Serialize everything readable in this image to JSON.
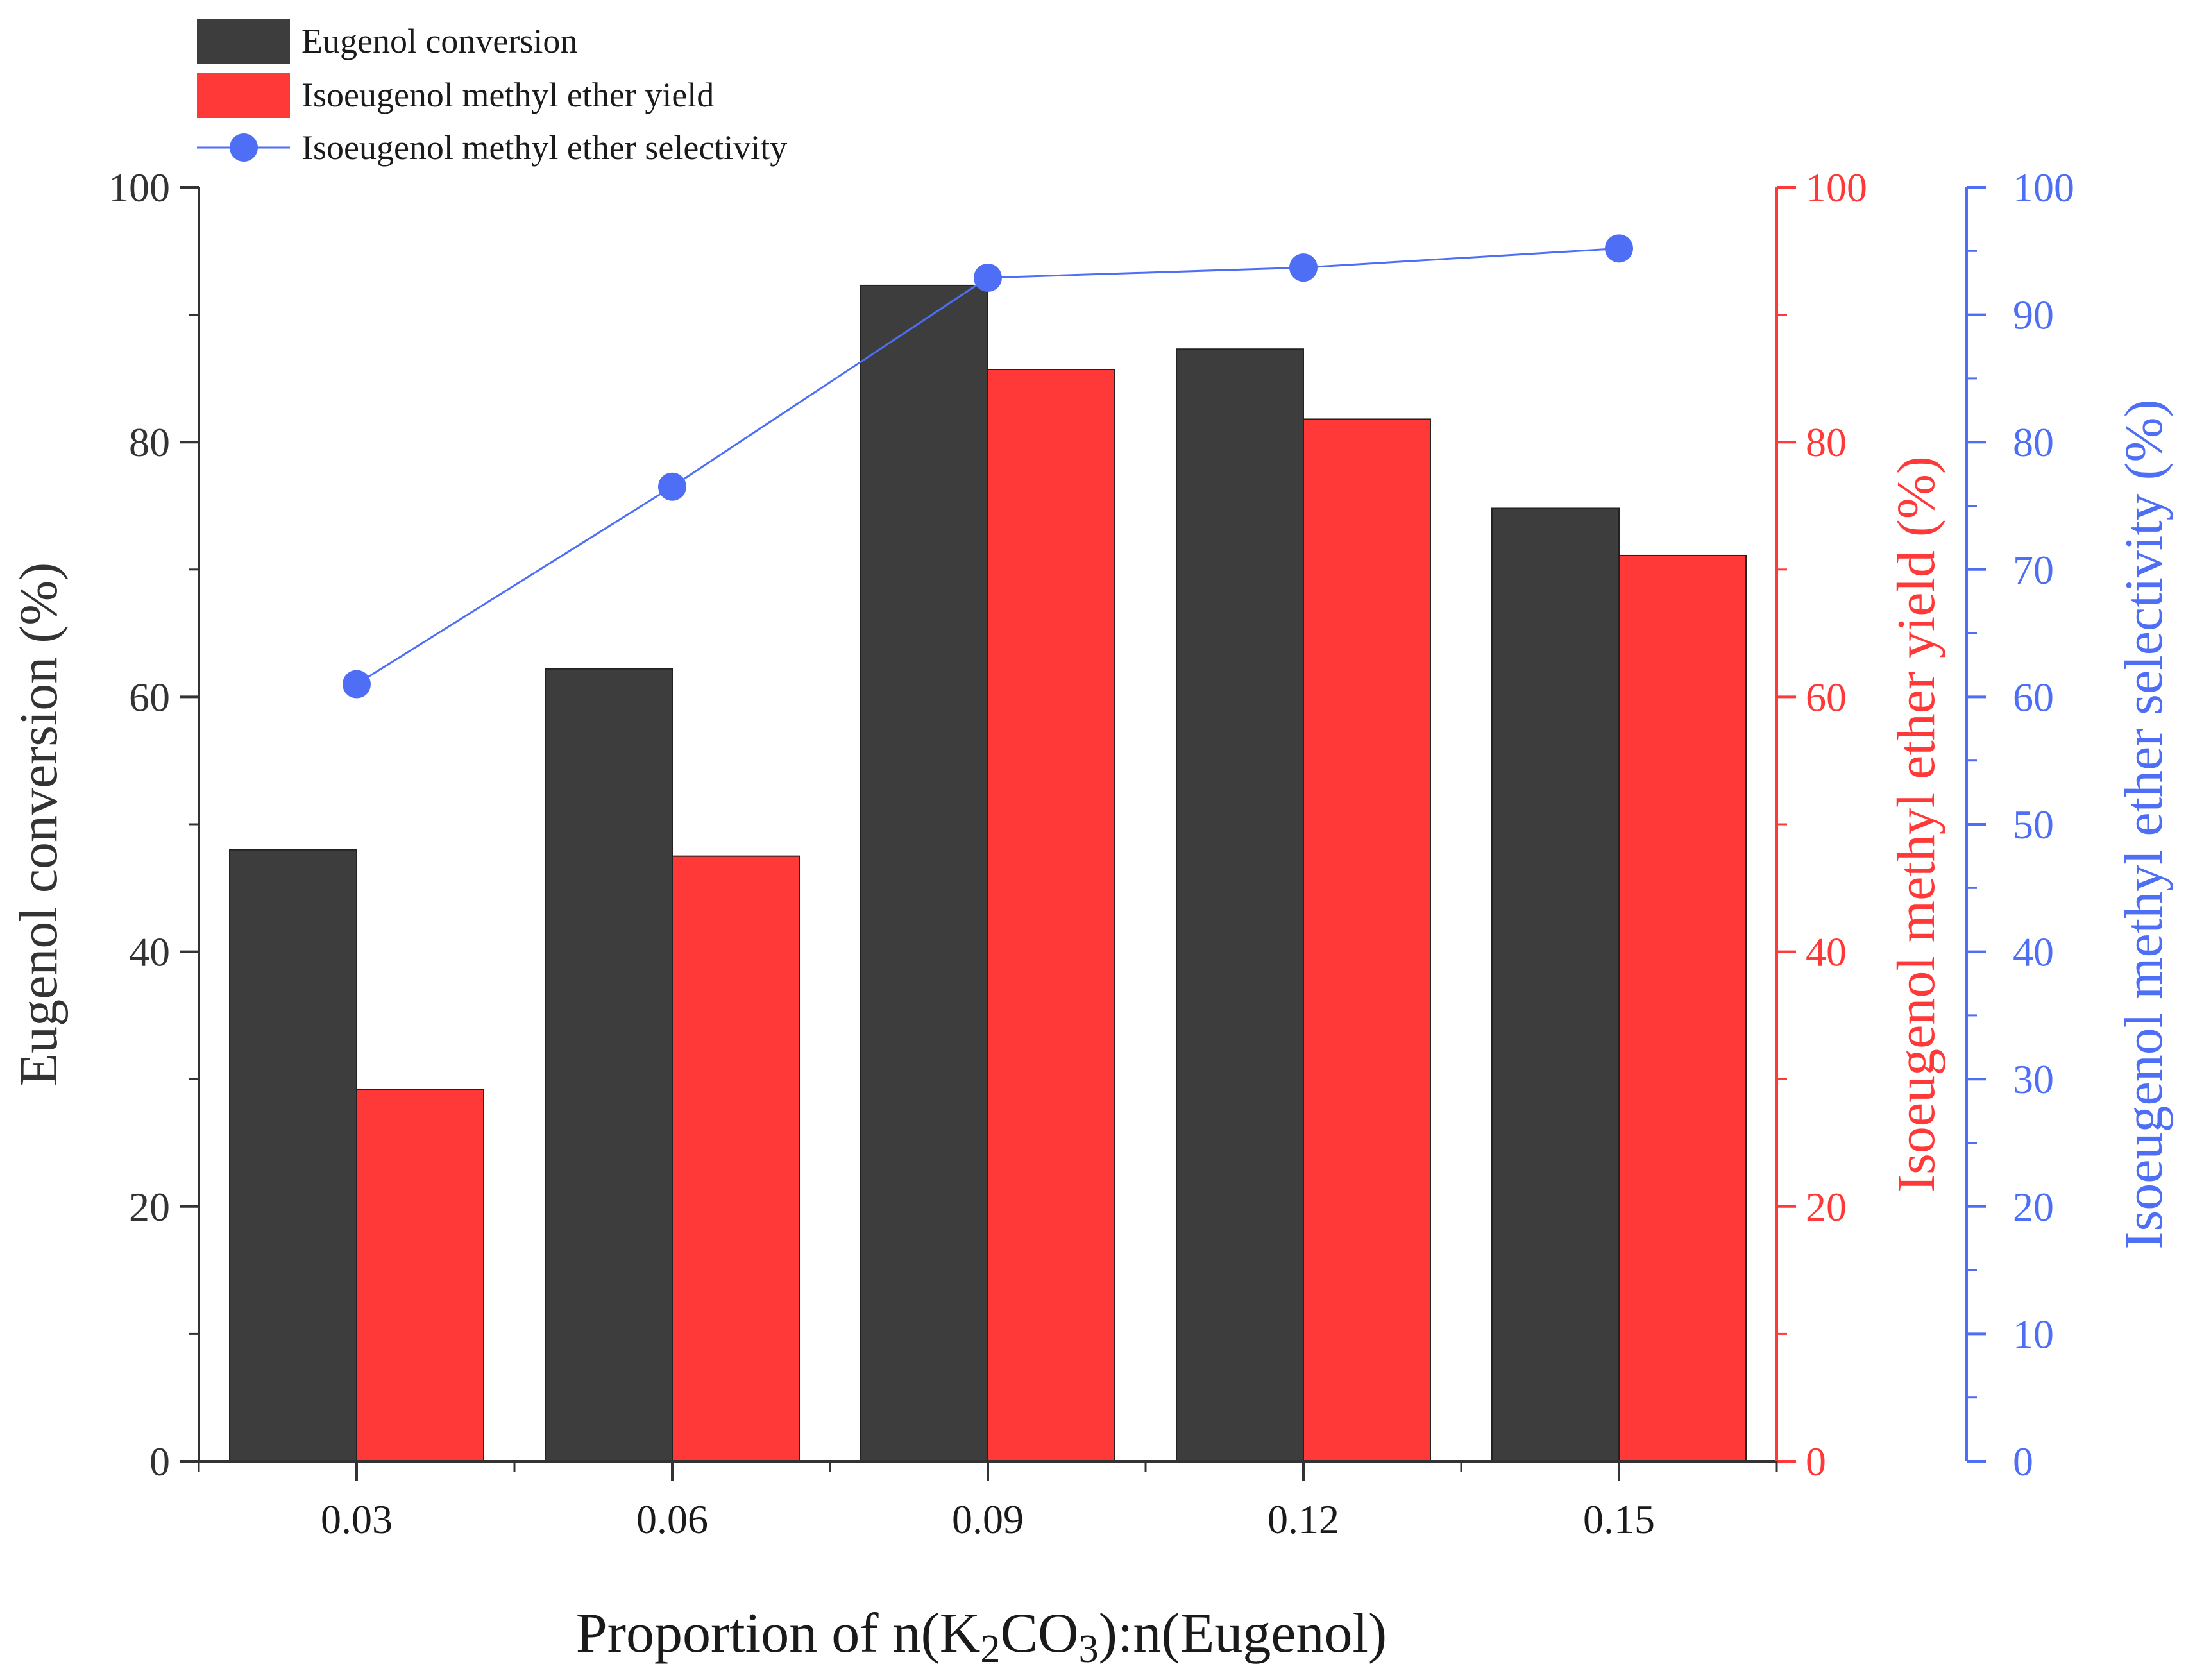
{
  "chart_data": {
    "type": "bar",
    "categories": [
      "0.03",
      "0.06",
      "0.09",
      "0.12",
      "0.15"
    ],
    "xlabel": {
      "prefix": "Proportion of n(K",
      "sub1": "2",
      "mid": "CO",
      "sub2": "3",
      "suffix": "):n(Eugenol)"
    },
    "series": [
      {
        "name": "Eugenol conversion",
        "type": "bar",
        "axis": "left",
        "color": "#3d3d3d",
        "values": [
          48.0,
          62.2,
          92.3,
          87.3,
          74.8
        ]
      },
      {
        "name": "Isoeugenol methyl ether yield",
        "type": "bar",
        "axis": "right1",
        "color": "#ff3838",
        "values": [
          29.2,
          47.5,
          85.7,
          81.8,
          71.1
        ]
      },
      {
        "name": "Isoeugenol methyl ether selectivity",
        "type": "line",
        "axis": "right2",
        "color": "#4d6ef5",
        "values": [
          61.0,
          76.5,
          92.9,
          93.7,
          95.2
        ]
      }
    ],
    "axes": {
      "left": {
        "label": "Eugenol conversion (%)",
        "ylim": [
          0,
          100
        ],
        "ticks": [
          "0",
          "20",
          "40",
          "60",
          "80",
          "100"
        ],
        "color": "#333333"
      },
      "right1": {
        "label": "Isoeugenol methyl ether yield (%)",
        "ylim": [
          0,
          100
        ],
        "ticks": [
          "0",
          "20",
          "40",
          "60",
          "80",
          "100"
        ],
        "color": "#ff3838"
      },
      "right2": {
        "label": "Isoeugenol methyl ether selectivity (%)",
        "ylim": [
          0,
          100
        ],
        "ticks": [
          "0",
          "10",
          "20",
          "30",
          "40",
          "50",
          "60",
          "70",
          "80",
          "90",
          "100"
        ],
        "color": "#4d6ef5"
      }
    },
    "legend_position": "top-left",
    "grid": false
  }
}
